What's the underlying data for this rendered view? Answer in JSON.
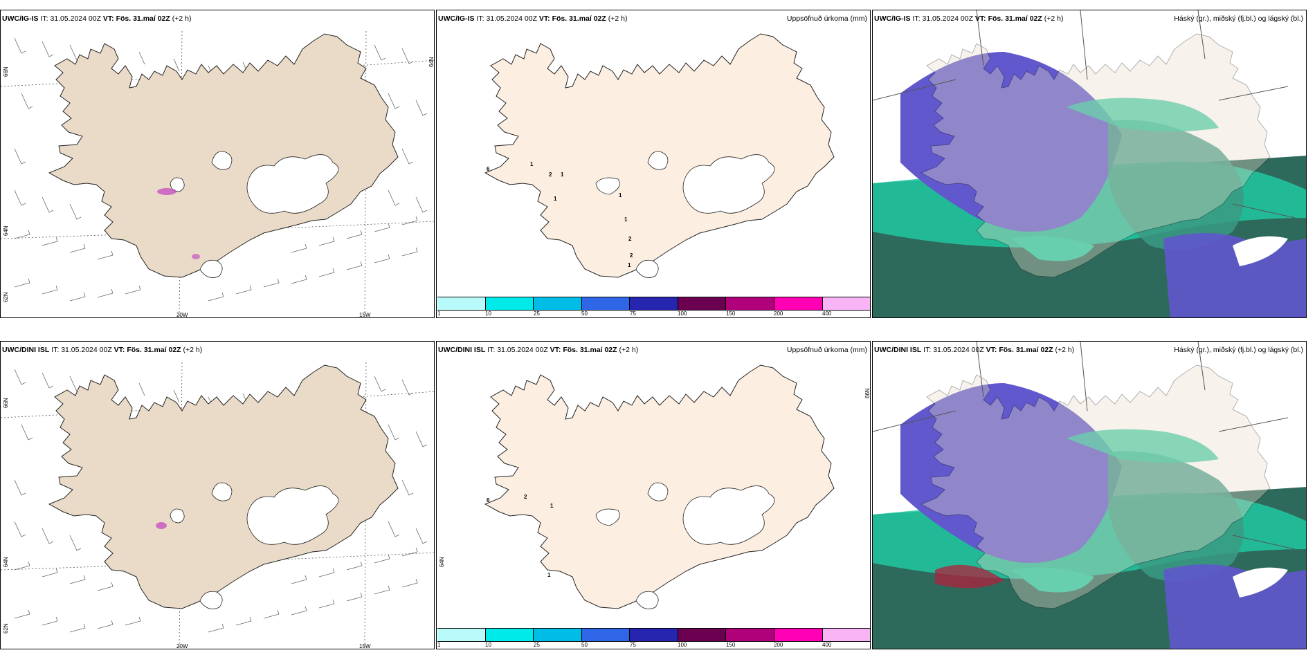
{
  "rows": [
    {
      "model": "UWC/IG-IS",
      "it_label": "IT:",
      "it_value": "31.05.2024 00Z",
      "vt_label": "VT:",
      "vt_value": "Fös. 31.maí 02Z",
      "lead": "(+2 h)"
    },
    {
      "model": "UWC/DINI ISL",
      "it_label": "IT:",
      "it_value": "31.05.2024 00Z",
      "vt_label": "VT:",
      "vt_value": "Fös. 31.maí 02Z",
      "lead": "(+2 h)"
    }
  ],
  "precip_title": "Uppsöfnuð úrkoma (mm)",
  "cloud_title": "Háský (gr.), miðský (fj.bl.) og lágský (bl.)",
  "lat_labels": [
    "66N",
    "64N",
    "62N"
  ],
  "lat_label_mid": "64N",
  "lon_labels": [
    "20W",
    "15W"
  ],
  "colorbar": {
    "ticks": [
      "1",
      "10",
      "25",
      "50",
      "75",
      "100",
      "150",
      "200",
      "400"
    ],
    "colors": [
      "#b8fafa",
      "#00eaea",
      "#00bde8",
      "#2f66e8",
      "#2525b0",
      "#6c0050",
      "#b0007a",
      "#ff00b4",
      "#f8b4f4"
    ]
  },
  "amounts_top": [
    "1",
    "2",
    "1",
    "1",
    "1",
    "1",
    "2",
    "2",
    "1",
    "6"
  ],
  "amounts_bottom": [
    "2",
    "1",
    "1",
    "6"
  ],
  "colors": {
    "land": "#eadbc8",
    "land_precip": "#fcefe2",
    "high_cloud": "#6058cc",
    "mid_cloud": "#20c8a0",
    "low_cloud": "#2e6a5c"
  }
}
